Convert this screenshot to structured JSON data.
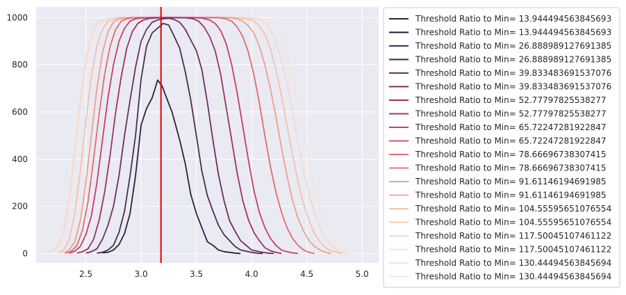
{
  "chart_data": {
    "type": "line",
    "title": "",
    "xlabel": "",
    "ylabel": "",
    "xlim": [
      2.05,
      5.15
    ],
    "ylim": [
      -40,
      1045
    ],
    "x_ticks": [
      2.5,
      3.0,
      3.5,
      4.0,
      4.5,
      5.0
    ],
    "y_ticks": [
      0,
      200,
      400,
      600,
      800,
      1000
    ],
    "grid": true,
    "background": "#eaeaf2",
    "legend_placement": "outside-right",
    "vertical_line": {
      "x": 3.18,
      "color": "#e00000"
    },
    "series": [
      {
        "name": "Threshold Ratio to Min= 13.944494563845693",
        "color": "#2e1e3b",
        "visible": true,
        "x": [
          2.65,
          2.7,
          2.75,
          2.8,
          2.85,
          2.9,
          2.95,
          3.0,
          3.05,
          3.1,
          3.15,
          3.19,
          3.23,
          3.28,
          3.35,
          3.4,
          3.45,
          3.5,
          3.55,
          3.6,
          3.65,
          3.7,
          3.75,
          3.8,
          3.85,
          3.9
        ],
        "y": [
          3,
          5,
          15,
          38,
          85,
          170,
          330,
          545,
          615,
          660,
          735,
          710,
          660,
          600,
          480,
          380,
          250,
          170,
          110,
          50,
          35,
          15,
          8,
          5,
          2,
          0
        ]
      },
      {
        "name": "Threshold Ratio to Min= 13.944494563845693",
        "color": "#1f1430",
        "visible": false,
        "x": [],
        "y": []
      },
      {
        "name": "Threshold Ratio to Min= 26.888989127691385",
        "color": "#4a2b56",
        "visible": true,
        "x": [
          2.6,
          2.65,
          2.7,
          2.75,
          2.8,
          2.85,
          2.9,
          2.95,
          3.0,
          3.05,
          3.1,
          3.15,
          3.2,
          3.25,
          3.3,
          3.35,
          3.4,
          3.45,
          3.5,
          3.55,
          3.6,
          3.65,
          3.7,
          3.75,
          3.8,
          3.85,
          3.9,
          3.95,
          4.0,
          4.05,
          4.1
        ],
        "y": [
          2,
          5,
          15,
          35,
          90,
          180,
          330,
          500,
          740,
          880,
          935,
          955,
          975,
          968,
          920,
          870,
          770,
          650,
          500,
          350,
          245,
          180,
          120,
          80,
          55,
          30,
          15,
          10,
          5,
          2,
          0
        ]
      },
      {
        "name": "Threshold Ratio to Min= 26.888989127691385",
        "color": "#3a2047",
        "visible": false,
        "x": [],
        "y": []
      },
      {
        "name": "Threshold Ratio to Min= 39.833483691537076",
        "color": "#6b2d63",
        "visible": true,
        "x": [
          2.5,
          2.55,
          2.6,
          2.65,
          2.7,
          2.75,
          2.8,
          2.85,
          2.9,
          2.95,
          3.0,
          3.05,
          3.1,
          3.15,
          3.2,
          3.25,
          3.3,
          3.35,
          3.4,
          3.45,
          3.5,
          3.55,
          3.6,
          3.65,
          3.7,
          3.75,
          3.8,
          3.85,
          3.9,
          3.95,
          4.0,
          4.05,
          4.1,
          4.15,
          4.2
        ],
        "y": [
          2,
          8,
          20,
          60,
          120,
          200,
          330,
          500,
          650,
          790,
          900,
          950,
          980,
          990,
          995,
          997,
          992,
          980,
          950,
          905,
          860,
          780,
          640,
          480,
          335,
          225,
          140,
          95,
          55,
          35,
          15,
          10,
          5,
          2,
          0
        ]
      },
      {
        "name": "Threshold Ratio to Min= 39.833483691537076",
        "color": "#7a2e68",
        "visible": false,
        "x": [],
        "y": []
      },
      {
        "name": "Threshold Ratio to Min= 52.77797825538277",
        "color": "#9c2e6b",
        "visible": true,
        "x": [
          2.42,
          2.47,
          2.52,
          2.57,
          2.62,
          2.67,
          2.72,
          2.77,
          2.82,
          2.87,
          2.92,
          2.97,
          3.02,
          3.07,
          3.12,
          3.17,
          3.22,
          3.3,
          3.4,
          3.47,
          3.52,
          3.57,
          3.62,
          3.67,
          3.72,
          3.77,
          3.82,
          3.87,
          3.92,
          3.97,
          4.02,
          4.07,
          4.12,
          4.17,
          4.22,
          4.27
        ],
        "y": [
          2,
          8,
          20,
          60,
          140,
          260,
          420,
          600,
          750,
          870,
          940,
          975,
          990,
          996,
          998,
          999,
          1000,
          1000,
          999,
          995,
          985,
          960,
          920,
          860,
          760,
          620,
          480,
          340,
          225,
          145,
          90,
          55,
          25,
          12,
          5,
          0
        ]
      },
      {
        "name": "Threshold Ratio to Min= 52.77797825538277",
        "color": "#a82f6c",
        "visible": false,
        "x": [],
        "y": []
      },
      {
        "name": "Threshold Ratio to Min= 65.72247281922847",
        "color": "#c83b6a",
        "visible": true,
        "x": [
          2.35,
          2.4,
          2.45,
          2.5,
          2.55,
          2.6,
          2.65,
          2.7,
          2.75,
          2.8,
          2.85,
          2.9,
          2.95,
          3.0,
          3.1,
          3.2,
          3.3,
          3.45,
          3.55,
          3.62,
          3.67,
          3.72,
          3.77,
          3.82,
          3.87,
          3.92,
          3.97,
          4.02,
          4.07,
          4.12,
          4.17,
          4.22,
          4.27,
          4.32,
          4.37,
          4.42
        ],
        "y": [
          2,
          10,
          30,
          80,
          160,
          300,
          480,
          660,
          800,
          900,
          955,
          985,
          995,
          998,
          1000,
          1000,
          1000,
          1000,
          998,
          990,
          975,
          945,
          890,
          800,
          680,
          540,
          400,
          270,
          175,
          110,
          65,
          35,
          15,
          8,
          3,
          0
        ]
      },
      {
        "name": "Threshold Ratio to Min= 65.72247281922847",
        "color": "#d8536c",
        "visible": false,
        "x": [],
        "y": []
      },
      {
        "name": "Threshold Ratio to Min= 78.66696738307415",
        "color": "#e06b70",
        "visible": true,
        "x": [
          2.32,
          2.37,
          2.42,
          2.47,
          2.52,
          2.57,
          2.62,
          2.67,
          2.72,
          2.77,
          2.82,
          2.87,
          2.92,
          3.0,
          3.2,
          3.5,
          3.7,
          3.77,
          3.82,
          3.87,
          3.92,
          3.97,
          4.02,
          4.07,
          4.12,
          4.17,
          4.22,
          4.27,
          4.32,
          4.37,
          4.42,
          4.47,
          4.52,
          4.57
        ],
        "y": [
          2,
          10,
          35,
          100,
          220,
          400,
          590,
          760,
          880,
          950,
          985,
          995,
          999,
          1000,
          1000,
          1000,
          1000,
          995,
          985,
          960,
          920,
          855,
          760,
          640,
          500,
          370,
          260,
          175,
          110,
          65,
          35,
          15,
          5,
          0
        ]
      },
      {
        "name": "Threshold Ratio to Min= 78.66696738307415",
        "color": "#e67a74",
        "visible": false,
        "x": [],
        "y": []
      },
      {
        "name": "Threshold Ratio to Min= 91.61146194691985",
        "color": "#eea08a",
        "visible": true,
        "x": [
          2.3,
          2.35,
          2.4,
          2.45,
          2.5,
          2.55,
          2.6,
          2.65,
          2.7,
          2.75,
          2.8,
          2.9,
          3.0,
          3.3,
          3.6,
          3.8,
          3.87,
          3.92,
          3.97,
          4.02,
          4.07,
          4.12,
          4.17,
          4.22,
          4.27,
          4.32,
          4.37,
          4.42,
          4.47,
          4.52,
          4.57,
          4.62,
          4.67,
          4.72
        ],
        "y": [
          2,
          15,
          50,
          140,
          300,
          500,
          700,
          850,
          940,
          980,
          995,
          1000,
          1000,
          1000,
          1000,
          1000,
          995,
          985,
          965,
          935,
          880,
          800,
          700,
          580,
          450,
          330,
          225,
          150,
          95,
          55,
          30,
          15,
          5,
          0
        ]
      },
      {
        "name": "Threshold Ratio to Min= 91.61146194691985",
        "color": "#f2ad94",
        "visible": false,
        "x": [],
        "y": []
      },
      {
        "name": "Threshold Ratio to Min= 104.55595651076554",
        "color": "#f4c2a8",
        "visible": true,
        "x": [
          2.25,
          2.3,
          2.35,
          2.4,
          2.45,
          2.5,
          2.55,
          2.6,
          2.65,
          2.7,
          2.8,
          3.0,
          3.4,
          3.8,
          3.97,
          4.02,
          4.07,
          4.12,
          4.17,
          4.22,
          4.27,
          4.32,
          4.37,
          4.42,
          4.47,
          4.52,
          4.57,
          4.62,
          4.67,
          4.72,
          4.77,
          4.82
        ],
        "y": [
          2,
          15,
          60,
          170,
          350,
          560,
          750,
          880,
          950,
          985,
          1000,
          1000,
          1000,
          1000,
          995,
          985,
          965,
          930,
          870,
          780,
          670,
          545,
          420,
          305,
          210,
          140,
          85,
          50,
          25,
          10,
          5,
          0
        ]
      },
      {
        "name": "Threshold Ratio to Min= 104.55595651076554",
        "color": "#f5cbb5",
        "visible": false,
        "x": [],
        "y": []
      },
      {
        "name": "Threshold Ratio to Min= 117.50045107461122",
        "color": "#f5d8cd",
        "visible": true,
        "x": [
          2.15,
          2.2,
          2.25,
          2.3,
          2.35,
          2.4,
          2.45,
          2.5,
          2.55,
          2.6,
          2.7,
          2.9,
          3.4,
          3.9,
          4.07,
          4.12,
          4.17,
          4.22,
          4.27,
          4.32,
          4.37,
          4.42,
          4.47,
          4.52,
          4.57,
          4.62,
          4.67,
          4.72,
          4.77,
          4.82,
          4.87
        ],
        "y": [
          2,
          10,
          30,
          90,
          220,
          420,
          640,
          810,
          920,
          975,
          998,
          1000,
          1000,
          1000,
          995,
          980,
          950,
          900,
          820,
          720,
          600,
          470,
          350,
          250,
          170,
          110,
          65,
          35,
          15,
          5,
          0
        ]
      },
      {
        "name": "Threshold Ratio to Min= 117.50045107461122",
        "color": "#f6dfd6",
        "visible": false,
        "x": [],
        "y": []
      },
      {
        "name": "Threshold Ratio to Min= 130.44494563845694",
        "color": "#f5e4df",
        "visible": true,
        "x": [
          2.15,
          2.2,
          2.25,
          2.3,
          2.35,
          2.4,
          2.45,
          2.5,
          2.55,
          2.6,
          2.7,
          3.0,
          3.5,
          4.0,
          4.17,
          4.22,
          4.27,
          4.32,
          4.37,
          4.42,
          4.47,
          4.52,
          4.57,
          4.62,
          4.67,
          4.72,
          4.77,
          4.82,
          4.87,
          4.92
        ],
        "y": [
          3,
          15,
          45,
          120,
          270,
          470,
          680,
          840,
          940,
          985,
          999,
          1000,
          1000,
          1000,
          990,
          965,
          920,
          850,
          760,
          640,
          510,
          390,
          280,
          190,
          120,
          70,
          35,
          15,
          5,
          0
        ]
      },
      {
        "name": "Threshold Ratio to Min= 130.44494563845694",
        "color": "#f6e9e6",
        "visible": false,
        "x": [],
        "y": []
      }
    ]
  }
}
